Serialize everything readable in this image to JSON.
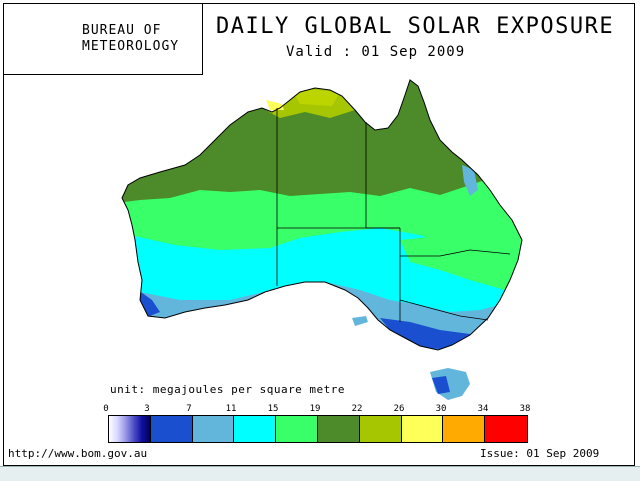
{
  "header": {
    "org_line1": "BUREAU   OF",
    "org_line2": "METEOROLOGY",
    "title": "DAILY GLOBAL SOLAR EXPOSURE",
    "valid": "Valid :  01 Sep 2009"
  },
  "legend": {
    "unit": "unit: megajoules per square metre",
    "ticks": [
      "0",
      "3",
      "7",
      "11",
      "15",
      "19",
      "22",
      "26",
      "30",
      "34",
      "38"
    ],
    "colors": [
      "#1a4fd0",
      "#62b6dc",
      "#00ffff",
      "#39ff69",
      "#4c8a2a",
      "#a5c600",
      "#ffff5a",
      "#ffaa00",
      "#ff0000"
    ],
    "gradient_first": [
      "#ffffff",
      "#d8d8ff",
      "#9a9ae6",
      "#5050c8",
      "#1010a0",
      "#000060"
    ]
  },
  "footer": {
    "url": "http://www.bom.gov.au",
    "issue": "Issue: 01 Sep 2009"
  }
}
